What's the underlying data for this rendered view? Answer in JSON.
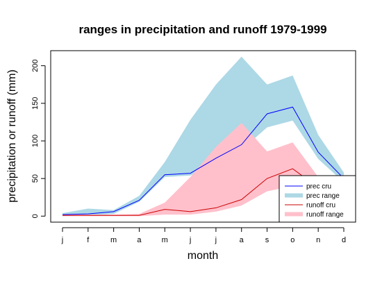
{
  "chart_data": {
    "type": "area",
    "title": "ranges in precipitation and runoff 1979-1999",
    "xlabel": "month",
    "ylabel": "precipitation or runoff (mm)",
    "categories": [
      "j",
      "f",
      "m",
      "a",
      "m",
      "j",
      "j",
      "a",
      "s",
      "o",
      "n",
      "d"
    ],
    "yticks": [
      0,
      50,
      100,
      150,
      200
    ],
    "ylim": [
      -8,
      220
    ],
    "grid": false,
    "legend_position": "bottom-right",
    "legend": [
      "prec cru",
      "prec range",
      "runoff cru",
      "runoff range"
    ],
    "series": [
      {
        "name": "prec range",
        "kind": "band",
        "color": "#add8e6",
        "upper": [
          4,
          10,
          8,
          27,
          72,
          128,
          175,
          212,
          175,
          187,
          108,
          58
        ],
        "lower": [
          0,
          1,
          3,
          19,
          52,
          54,
          70,
          88,
          118,
          127,
          76,
          45
        ]
      },
      {
        "name": "runoff range",
        "kind": "band",
        "color": "#ffc0cb",
        "upper": [
          2,
          2,
          2,
          3,
          18,
          52,
          92,
          124,
          86,
          98,
          52,
          8
        ],
        "lower": [
          0,
          0,
          0,
          0,
          2,
          2,
          6,
          14,
          33,
          40,
          28,
          5
        ]
      },
      {
        "name": "prec cru",
        "kind": "line",
        "color": "#0000ff",
        "values": [
          2,
          3,
          6,
          21,
          55,
          57,
          77,
          95,
          136,
          145,
          85,
          50
        ]
      },
      {
        "name": "runoff cru",
        "kind": "line",
        "color": "#cc0000",
        "values": [
          1,
          1,
          1,
          1,
          9,
          6,
          11,
          22,
          50,
          63,
          38,
          6
        ]
      }
    ]
  }
}
